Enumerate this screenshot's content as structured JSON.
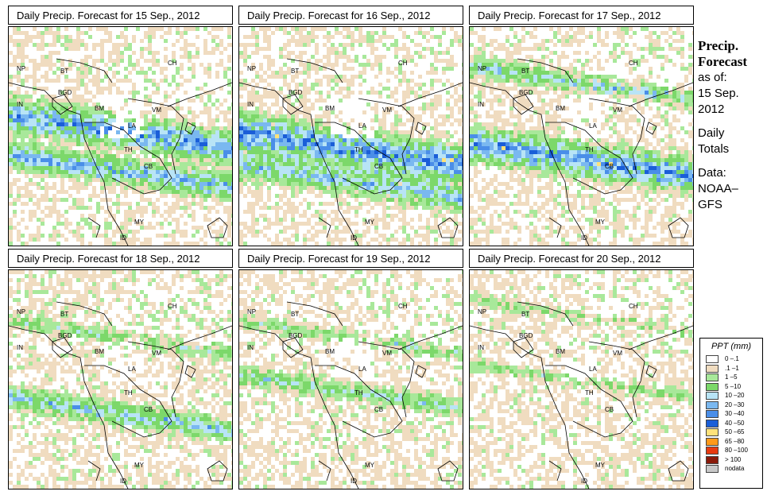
{
  "panels": [
    {
      "title": "Daily Precip. Forecast for  15 Sep., 2012",
      "seed": 15,
      "bands": [
        [
          0.47,
          0.9,
          0.9
        ],
        [
          0.65,
          0.8,
          0.7
        ]
      ]
    },
    {
      "title": "Daily Precip. Forecast for  16 Sep., 2012",
      "seed": 16,
      "bands": [
        [
          0.55,
          1.0,
          1.0
        ],
        [
          0.7,
          0.7,
          0.7
        ]
      ]
    },
    {
      "title": "Daily Precip. Forecast for  17 Sep., 2012",
      "seed": 17,
      "bands": [
        [
          0.6,
          0.95,
          0.9
        ],
        [
          0.25,
          0.6,
          0.5
        ]
      ]
    },
    {
      "title": "Daily Precip. Forecast for  18 Sep., 2012",
      "seed": 18,
      "bands": [
        [
          0.65,
          0.7,
          0.6
        ],
        [
          0.3,
          0.4,
          0.4
        ]
      ]
    },
    {
      "title": "Daily Precip. Forecast for  19 Sep., 2012",
      "seed": 19,
      "bands": [
        [
          0.55,
          0.5,
          0.5
        ],
        [
          0.3,
          0.4,
          0.4
        ]
      ]
    },
    {
      "title": "Daily Precip. Forecast for  20 Sep., 2012",
      "seed": 20,
      "bands": [
        [
          0.5,
          0.35,
          0.3
        ],
        [
          0.2,
          0.3,
          0.3
        ]
      ]
    }
  ],
  "country_labels": {
    "nep": "NP",
    "bt": "BT",
    "bgd": "BGD",
    "ind": "IN",
    "bm": "BM",
    "ch": "CH",
    "vm": "VM",
    "la": "LA",
    "th": "TH",
    "cb": "CB",
    "my": "MY",
    "id": "ID"
  },
  "sidebar": {
    "title_line1": "Precip.",
    "title_line2": "Forecast",
    "asof": "as of:",
    "date1": "15 Sep.",
    "date2": "2012",
    "daily": "Daily",
    "totals": "Totals",
    "data": "Data:",
    "source1": "NOAA–",
    "source2": "GFS"
  },
  "legend": {
    "title": "PPT (mm)",
    "items": [
      {
        "label": "0 –.1",
        "color": "#ffffff"
      },
      {
        "label": ".1 –1",
        "color": "#f0dcc0"
      },
      {
        "label": "1 –5",
        "color": "#a8e89a"
      },
      {
        "label": "5 –10",
        "color": "#7cd86a"
      },
      {
        "label": "10 –20",
        "color": "#b8e4f6"
      },
      {
        "label": "20 –30",
        "color": "#7ab8f0"
      },
      {
        "label": "30 –40",
        "color": "#4a8ee8"
      },
      {
        "label": "40 –50",
        "color": "#1a5ed8"
      },
      {
        "label": "50 –65",
        "color": "#ffe27a"
      },
      {
        "label": "65 –80",
        "color": "#ff9a1a"
      },
      {
        "label": "80 –100",
        "color": "#e83a10"
      },
      {
        "label": "> 100",
        "color": "#8a1a0a"
      },
      {
        "label": "nodata",
        "color": "#c8c8c8"
      }
    ]
  }
}
